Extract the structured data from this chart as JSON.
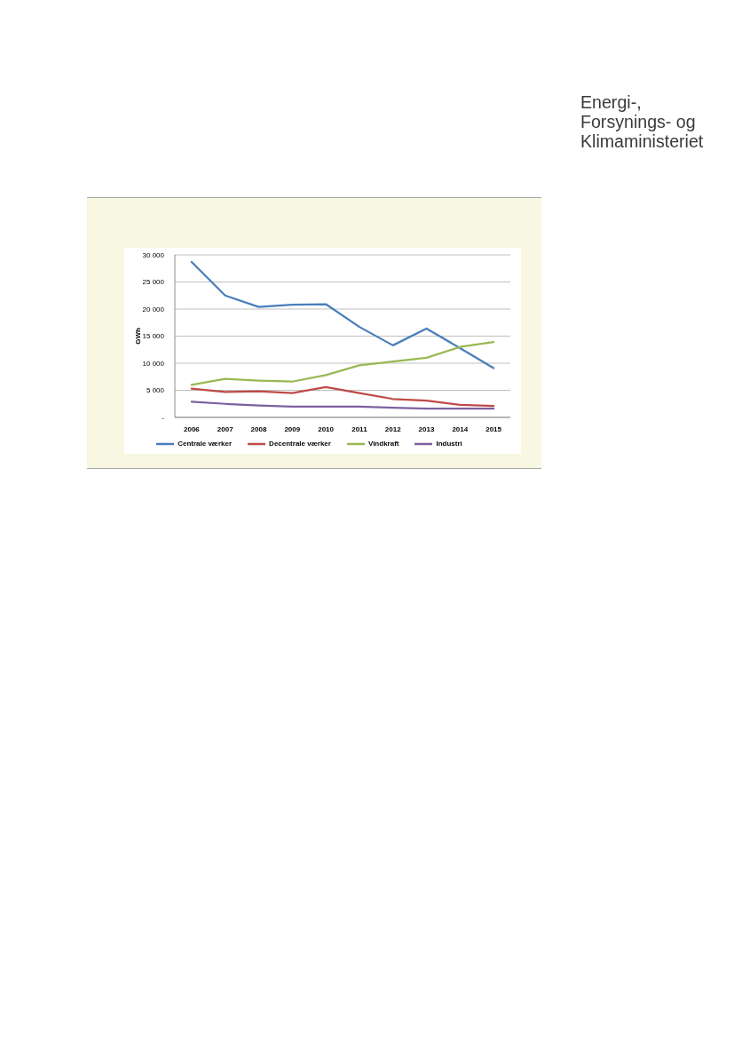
{
  "chart_data": {
    "type": "line",
    "ylabel": "GWh",
    "categories": [
      "2006",
      "2007",
      "2008",
      "2009",
      "2010",
      "2011",
      "2012",
      "2013",
      "2014",
      "2015"
    ],
    "series": [
      {
        "name": "Centrale værker",
        "color": "#4a7ebb",
        "values": [
          28700,
          22500,
          20400,
          20800,
          20900,
          16700,
          13300,
          16400,
          12800,
          9100
        ]
      },
      {
        "name": "Decentrale værker",
        "color": "#be4b48",
        "values": [
          5300,
          4700,
          4800,
          4500,
          5600,
          4500,
          3400,
          3100,
          2300,
          2100
        ]
      },
      {
        "name": "Vindkraft",
        "color": "#98b954",
        "values": [
          6000,
          7100,
          6800,
          6600,
          7800,
          9600,
          10300,
          11000,
          13000,
          13900
        ]
      },
      {
        "name": "Industri",
        "color": "#7d60a0",
        "values": [
          2900,
          2500,
          2200,
          2000,
          2000,
          2000,
          1800,
          1600,
          1600,
          1600
        ]
      }
    ],
    "ylim": [
      0,
      30000
    ],
    "yticks": [
      {
        "value": 0,
        "label": "-"
      },
      {
        "value": 5000,
        "label": "5 000"
      },
      {
        "value": 10000,
        "label": "10 000"
      },
      {
        "value": 15000,
        "label": "15 000"
      },
      {
        "value": 20000,
        "label": "20 000"
      },
      {
        "value": 25000,
        "label": "25 000"
      },
      {
        "value": 30000,
        "label": "30 000"
      }
    ],
    "grid": "y",
    "legend": "bottom",
    "annotations": [
      "Energi-,\nForsynings- og\nKlimaministeriet"
    ]
  }
}
